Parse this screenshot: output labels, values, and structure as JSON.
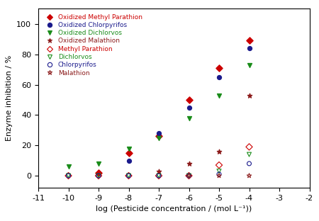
{
  "chart_data": {
    "type": "scatter",
    "x_label": "log (Pesticide concentration / (mol L⁻¹))",
    "y_label": "Enzyme inhibition / %",
    "xlim": [
      -11,
      -2
    ],
    "xticks": [
      -11,
      -10,
      -9,
      -8,
      -7,
      -6,
      -5,
      -4,
      -3,
      -2
    ],
    "ylim": [
      -8,
      110
    ],
    "yticks": [
      0,
      20,
      40,
      60,
      80,
      100
    ],
    "legend": "upper left",
    "series": [
      {
        "name": "Oxidized Methyl Parathion",
        "color": "#cc0000",
        "marker": "diamond",
        "x": [
          -9,
          -8,
          -7,
          -6,
          -5,
          -4
        ],
        "values": [
          2,
          15,
          26,
          50,
          71,
          89
        ]
      },
      {
        "name": "Oxidized Chlorpyrifos",
        "color": "#1a1a8c",
        "marker": "circle",
        "x": [
          -8,
          -7,
          -6,
          -5,
          -4
        ],
        "values": [
          10,
          28,
          45,
          65,
          84
        ]
      },
      {
        "name": "Oxidized Dichlorvos",
        "color": "#1a8c1a",
        "marker": "triangle_down",
        "x": [
          -10,
          -9,
          -8,
          -7,
          -6,
          -5,
          -4
        ],
        "values": [
          6,
          8,
          18,
          25,
          38,
          53,
          73
        ]
      },
      {
        "name": "Oxidized Malathion",
        "color": "#8b1a1a",
        "marker": "star",
        "x": [
          -7,
          -6,
          -5,
          -4
        ],
        "values": [
          3,
          8,
          16,
          53
        ]
      },
      {
        "name": "Methyl Parathion",
        "color": "#cc0000",
        "marker": "open_diamond",
        "x": [
          -10,
          -9,
          -8,
          -7,
          -6,
          -5,
          -4
        ],
        "values": [
          0,
          0,
          0,
          0,
          0,
          7,
          19
        ]
      },
      {
        "name": "Dichlorvos",
        "color": "#1a8c1a",
        "marker": "open_triangle_down",
        "x": [
          -10,
          -9,
          -8,
          -7,
          -6,
          -5,
          -4
        ],
        "values": [
          0,
          0,
          0,
          0,
          0,
          3,
          14
        ]
      },
      {
        "name": "Chlorpyrifos",
        "color": "#1a1a8c",
        "marker": "open_circle",
        "x": [
          -10,
          -9,
          -8,
          -7,
          -6,
          -5,
          -4
        ],
        "values": [
          0,
          0,
          0,
          0,
          0,
          1,
          8
        ]
      },
      {
        "name": "Malathion",
        "color": "#8b1a1a",
        "marker": "open_star",
        "x": [
          -6,
          -5,
          -4
        ],
        "values": [
          0,
          0,
          0
        ]
      }
    ]
  }
}
